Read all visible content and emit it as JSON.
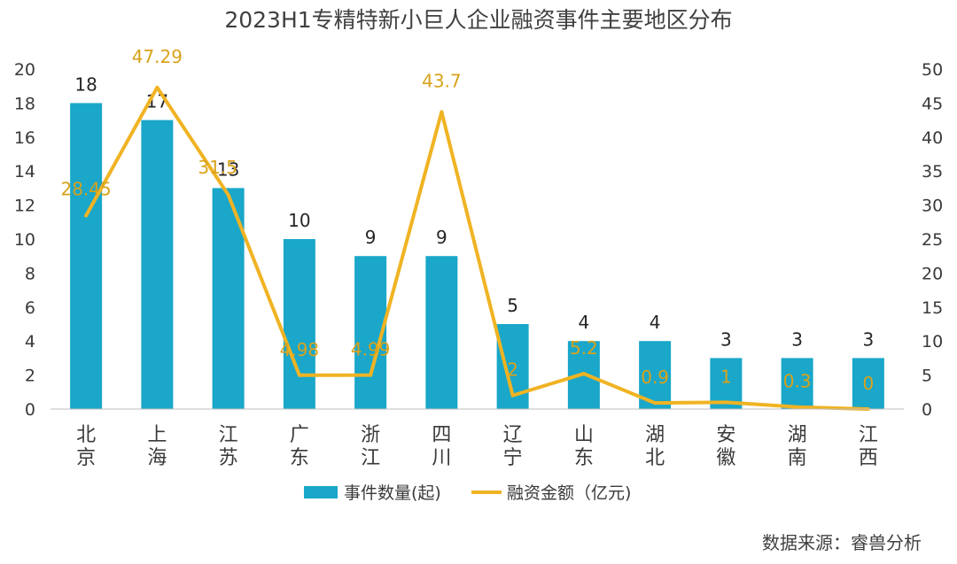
{
  "chart_data": {
    "type": "bar+line",
    "title": "2023H1专精特新小巨人企业融资事件主要地区分布",
    "categories": [
      "北京",
      "上海",
      "江苏",
      "广东",
      "浙江",
      "四川",
      "辽宁",
      "山东",
      "湖北",
      "安徽",
      "湖南",
      "江西"
    ],
    "series": [
      {
        "name": "事件数量(起)",
        "type": "bar",
        "axis": "left",
        "color": "#1aa7c9",
        "values": [
          18,
          17,
          13,
          10,
          9,
          9,
          5,
          4,
          4,
          3,
          3,
          3
        ],
        "labels": [
          "18",
          "17",
          "13",
          "10",
          "9",
          "9",
          "5",
          "4",
          "4",
          "3",
          "3",
          "3"
        ]
      },
      {
        "name": "融资金额（亿元)",
        "type": "line",
        "axis": "right",
        "color": "#f0b323",
        "values": [
          28.45,
          47.29,
          31.5,
          4.98,
          4.99,
          43.7,
          2,
          5.2,
          0.9,
          1,
          0.3,
          0
        ],
        "labels": [
          "28.45",
          "47.29",
          "31.5",
          "4.98",
          "4.99",
          "43.7",
          "2",
          "5.2",
          "0.9",
          "1",
          "0.3",
          "0"
        ]
      }
    ],
    "y_left": {
      "min": 0,
      "max": 20,
      "ticks": [
        "0",
        "2",
        "4",
        "6",
        "8",
        "10",
        "12",
        "14",
        "16",
        "18",
        "20"
      ]
    },
    "y_right": {
      "min": 0,
      "max": 50,
      "ticks": [
        "0",
        "5",
        "10",
        "15",
        "20",
        "25",
        "30",
        "35",
        "40",
        "45",
        "50"
      ]
    },
    "grid": false,
    "legend_position": "bottom"
  },
  "source": "数据来源：睿兽分析"
}
